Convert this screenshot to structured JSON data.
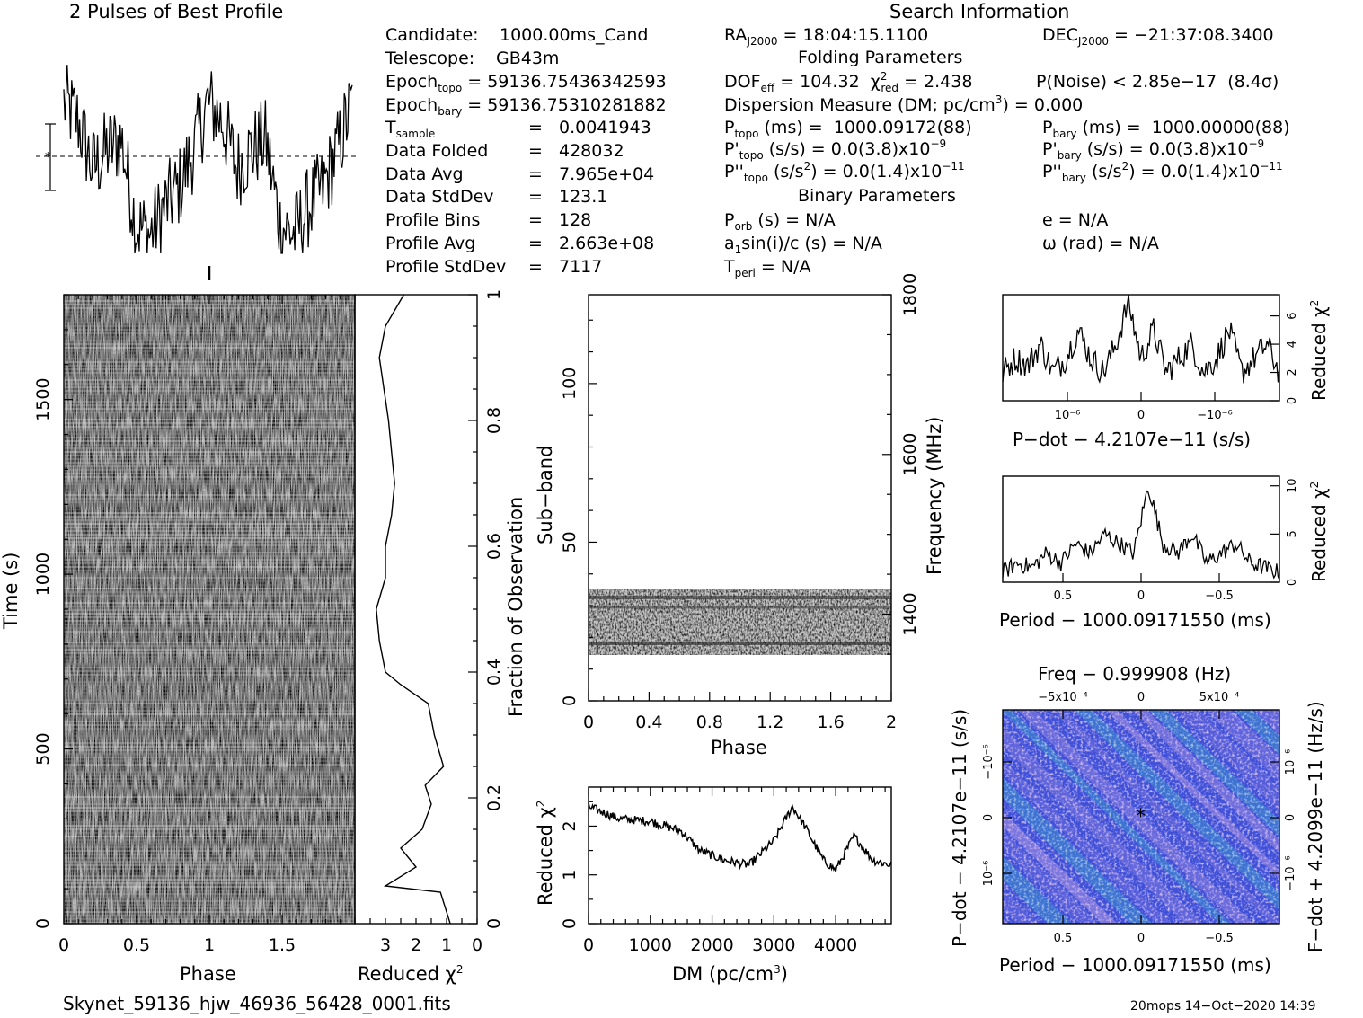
{
  "header": {
    "left_title": "2 Pulses of Best Profile",
    "search_title": "Search Information",
    "folding_title": "Folding Parameters",
    "binary_title": "Binary Parameters"
  },
  "info_col1": {
    "candidate_label": "Candidate:",
    "candidate_value": "1000.00ms_Cand",
    "telescope_label": "Telescope:",
    "telescope_value": "GB43m",
    "epoch_topo": "59136.75436342593",
    "epoch_bary": "59136.75310281882",
    "t_sample": "0.0041943",
    "data_folded": "428032",
    "data_avg": "7.965e+04",
    "data_stddev": "123.1",
    "profile_bins": "128",
    "profile_avg": "2.663e+08",
    "profile_stddev": "7117"
  },
  "info_col2": {
    "ra": "18:04:15.1100",
    "dec": "−21:37:08.3400",
    "dof_eff": "104.32",
    "chi2_red": "2.438",
    "p_noise": "2.85e−17",
    "sigma": "(8.4σ)",
    "dm": "0.000",
    "p_topo": "1000.09172(88)",
    "p_bary": "1000.00000(88)",
    "pd_topo": "0.0(3.8)x10",
    "pd_topo_exp": "−9",
    "pd_bary": "0.0(3.8)x10",
    "pd_bary_exp": "−9",
    "pdd_topo": "0.0(1.4)x10",
    "pdd_topo_exp": "−11",
    "pdd_bary": "0.0(1.4)x10",
    "pdd_bary_exp": "−11",
    "p_orb": "N/A",
    "a1sini": "N/A",
    "t_peri": "N/A",
    "e": "N/A",
    "omega": "N/A"
  },
  "footer": {
    "filename": "Skynet_59136_hjw_46936_56428_0001.fits",
    "stamp": "20mops 14−Oct−2020 14:39"
  },
  "axes": {
    "phase_xlabel": "Phase",
    "time_ylabel": "Time (s)",
    "redchi_xlabel": "Reduced χ",
    "frac_ylabel": "Fraction of Observation",
    "subband_ylabel": "Sub−band",
    "subband_xlabel": "Phase",
    "freq_ylabel": "Frequency (MHz)",
    "dm_xlabel": "DM (pc/cm",
    "dm_ylabel": "Reduced χ",
    "pdot_xlabel": "P−dot − 4.2107e−11 (s/s)",
    "pdot_ylabel": "Reduced χ",
    "period_xlabel": "Period − 1000.09171550 (ms)",
    "period_ylabel": "Reduced χ",
    "freq_top_label": "Freq − 0.999908 (Hz)",
    "pp_xlabel": "Period − 1000.09171550 (ms)",
    "pp_ylabel": "P−dot − 4.2107e−11 (s/s)",
    "pp_ylabel_right": "F−dot + 4.2099e−11 (Hz/s)"
  },
  "ticks": {
    "phase_x": [
      "0",
      "0.5",
      "1",
      "1.5"
    ],
    "time_y": [
      "0",
      "500",
      "1000",
      "1500"
    ],
    "redchi_x": [
      "3",
      "2",
      "1",
      "0"
    ],
    "frac_y": [
      "0",
      "0.2",
      "0.4",
      "0.6",
      "0.8",
      "1"
    ],
    "subband_y": [
      "0",
      "50",
      "100"
    ],
    "subband_x": [
      "0",
      "0.4",
      "0.8",
      "1.2",
      "1.6",
      "2"
    ],
    "freq_y": [
      "1400",
      "1600",
      "1800"
    ],
    "dm_x": [
      "0",
      "1000",
      "2000",
      "3000",
      "4000"
    ],
    "dm_y": [
      "0",
      "1",
      "2"
    ],
    "pdot_x": [
      "10⁻⁶",
      "0",
      "−10⁻⁶"
    ],
    "pdot_y": [
      "0",
      "2",
      "4",
      "6"
    ],
    "period_x": [
      "0.5",
      "0",
      "−0.5"
    ],
    "period_y": [
      "0",
      "5",
      "10"
    ],
    "pp_x": [
      "0.5",
      "0",
      "−0.5"
    ],
    "pp_top": [
      "−5x10⁻⁴",
      "0",
      "5x10⁻⁴"
    ]
  },
  "colors": {
    "pp_base": "#3f4fd8",
    "pp_light": "#c9a8e6",
    "pp_accent": "#3ad7c4"
  },
  "chart_data": [
    {
      "type": "line",
      "title": "2 Pulses of Best Profile",
      "x": [
        0,
        0.1,
        0.2,
        0.3,
        0.4,
        0.5,
        0.6,
        0.7,
        0.8,
        0.9,
        1.0,
        1.1,
        1.2,
        1.3,
        1.4,
        1.5,
        1.6,
        1.7,
        1.8,
        1.9,
        2.0
      ],
      "values": [
        0.8,
        0.7,
        0.45,
        0.55,
        0.6,
        0.15,
        0.1,
        0.25,
        0.35,
        0.55,
        0.8,
        0.7,
        0.45,
        0.55,
        0.6,
        0.15,
        0.1,
        0.25,
        0.35,
        0.55,
        0.8
      ],
      "xlim": [
        0,
        2
      ]
    },
    {
      "type": "heatmap",
      "xlabel": "Phase",
      "ylabel": "Time (s)",
      "xlim": [
        0,
        2
      ],
      "ylim": [
        0,
        1800
      ]
    },
    {
      "type": "line",
      "xlabel": "Reduced χ²",
      "ylabel": "Fraction of Observation",
      "x": [
        0.88,
        1.2,
        3.0,
        2.0,
        2.5,
        1.8,
        1.5,
        1.7,
        1.1,
        1.4,
        1.6,
        2.5,
        3.0,
        3.2,
        3.3,
        3.0,
        3.0,
        2.8,
        2.7,
        2.9,
        3.2,
        3.0,
        2.4
      ],
      "y": [
        0,
        0.05,
        0.06,
        0.09,
        0.12,
        0.15,
        0.19,
        0.22,
        0.25,
        0.3,
        0.35,
        0.38,
        0.4,
        0.45,
        0.5,
        0.55,
        0.6,
        0.65,
        0.7,
        0.8,
        0.9,
        0.95,
        1.0
      ],
      "xlim": [
        4,
        0
      ],
      "ylim": [
        0,
        1
      ]
    },
    {
      "type": "heatmap",
      "xlabel": "Phase",
      "ylabel": "Sub−band",
      "xlim": [
        0,
        2
      ],
      "ylim": [
        0,
        128
      ]
    },
    {
      "type": "line",
      "xlabel": "DM (pc/cm³)",
      "ylabel": "Reduced χ²",
      "x": [
        0,
        500,
        1000,
        1500,
        1800,
        2200,
        2600,
        3000,
        3300,
        3500,
        3800,
        4000,
        4300,
        4600,
        4900
      ],
      "values": [
        2.4,
        2.15,
        2.1,
        1.9,
        1.5,
        1.3,
        1.2,
        1.7,
        2.4,
        2.0,
        1.3,
        1.1,
        1.8,
        1.3,
        1.2
      ],
      "xlim": [
        0,
        4900
      ],
      "ylim": [
        0,
        2.8
      ]
    },
    {
      "type": "line",
      "xlabel": "P−dot − 4.2107e−11 (s/s)",
      "ylabel": "Reduced χ²",
      "values": [
        2,
        3,
        2.5,
        4,
        2,
        3,
        5,
        3,
        2,
        4,
        7,
        3,
        5,
        2,
        3,
        4,
        2,
        3,
        5,
        2,
        3,
        4,
        2
      ],
      "ylim": [
        0,
        7.5
      ]
    },
    {
      "type": "line",
      "xlabel": "Period − 1000.09171550 (ms)",
      "ylabel": "Reduced χ²",
      "values": [
        1,
        2,
        1.5,
        3,
        2,
        4,
        3,
        5,
        4,
        3,
        10,
        4,
        3,
        5,
        2,
        3,
        4,
        2,
        1.5,
        1
      ],
      "ylim": [
        0,
        11
      ]
    },
    {
      "type": "heatmap",
      "xlabel": "Period − 1000.09171550 (ms)",
      "ylabel": "P−dot − 4.2107e−11 (s/s)",
      "xlim": [
        0.95,
        -0.95
      ]
    }
  ]
}
